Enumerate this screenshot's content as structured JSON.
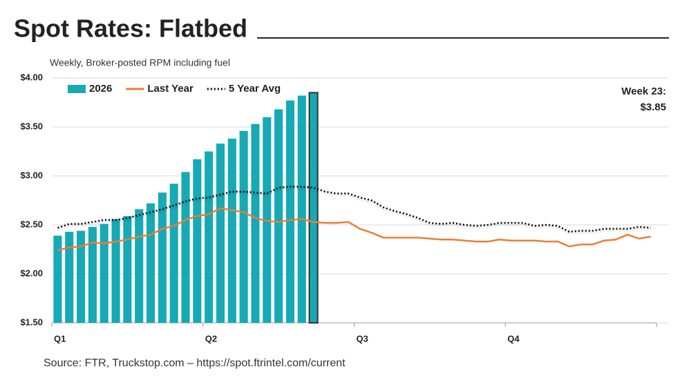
{
  "chart_data": {
    "type": "bar",
    "title": "Spot Rates: Flatbed",
    "subtitle": "Weekly, Broker-posted RPM including fuel",
    "source": "Source: FTR, Truckstop.com – https://spot.ftrintel.com/current",
    "annotation": [
      "Week 23:",
      "$3.85"
    ],
    "categories": [
      "Q1",
      null,
      null,
      null,
      null,
      null,
      null,
      null,
      null,
      null,
      null,
      null,
      null,
      "Q2",
      null,
      null,
      null,
      null,
      null,
      null,
      null,
      null,
      null,
      null,
      null,
      null,
      "Q3",
      null,
      null,
      null,
      null,
      null,
      null,
      null,
      null,
      null,
      null,
      null,
      null,
      "Q4",
      null,
      null,
      null,
      null,
      null,
      null,
      null,
      null,
      null,
      null,
      null,
      null
    ],
    "series": [
      {
        "name": "2026",
        "type": "bar",
        "color": "#17a9b5",
        "values": [
          2.39,
          2.43,
          2.44,
          2.48,
          2.51,
          2.56,
          2.59,
          2.66,
          2.72,
          2.83,
          2.92,
          3.04,
          3.17,
          3.25,
          3.33,
          3.38,
          3.46,
          3.53,
          3.6,
          3.68,
          3.77,
          3.82,
          3.85,
          null,
          null,
          null,
          null,
          null,
          null,
          null,
          null,
          null,
          null,
          null,
          null,
          null,
          null,
          null,
          null,
          null,
          null,
          null,
          null,
          null,
          null,
          null,
          null,
          null,
          null,
          null,
          null,
          null
        ]
      },
      {
        "name": "Last Year",
        "type": "line",
        "color": "#ed7d31",
        "values": [
          2.24,
          2.27,
          2.28,
          2.32,
          2.31,
          2.33,
          2.35,
          2.38,
          2.4,
          2.46,
          2.49,
          2.55,
          2.59,
          2.61,
          2.67,
          2.65,
          2.63,
          2.57,
          2.54,
          2.53,
          2.55,
          2.56,
          2.53,
          2.52,
          2.52,
          2.53,
          2.46,
          2.42,
          2.37,
          2.37,
          2.37,
          2.37,
          2.36,
          2.35,
          2.35,
          2.34,
          2.33,
          2.33,
          2.35,
          2.34,
          2.34,
          2.34,
          2.33,
          2.33,
          2.28,
          2.3,
          2.3,
          2.34,
          2.35,
          2.4,
          2.36,
          2.38
        ]
      },
      {
        "name": "5 Year Avg",
        "type": "line",
        "dash": "dotted",
        "color": "#000000",
        "values": [
          2.47,
          2.51,
          2.51,
          2.53,
          2.55,
          2.55,
          2.57,
          2.6,
          2.63,
          2.66,
          2.7,
          2.74,
          2.77,
          2.78,
          2.81,
          2.84,
          2.84,
          2.83,
          2.82,
          2.88,
          2.89,
          2.89,
          2.88,
          2.84,
          2.82,
          2.82,
          2.78,
          2.75,
          2.68,
          2.64,
          2.61,
          2.57,
          2.52,
          2.51,
          2.52,
          2.5,
          2.49,
          2.5,
          2.52,
          2.52,
          2.52,
          2.49,
          2.5,
          2.49,
          2.43,
          2.44,
          2.44,
          2.46,
          2.46,
          2.46,
          2.48,
          2.47
        ]
      }
    ],
    "ylim": [
      1.5,
      4.0
    ],
    "yticks": [
      {
        "value": 1.5,
        "label": "$1.50"
      },
      {
        "value": 2.0,
        "label": "$2.00"
      },
      {
        "value": 2.5,
        "label": "$2.50"
      },
      {
        "value": 3.0,
        "label": "$3.00"
      },
      {
        "value": 3.5,
        "label": "$3.50"
      },
      {
        "value": 4.0,
        "label": "$4.00"
      }
    ],
    "grid": true,
    "legend": "upper left"
  }
}
